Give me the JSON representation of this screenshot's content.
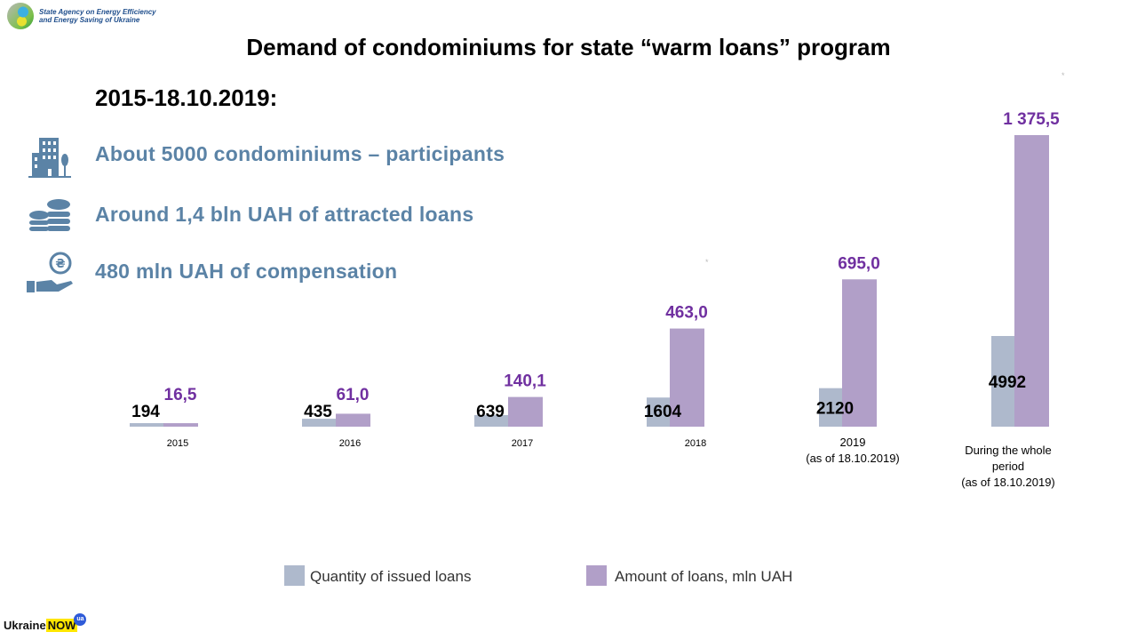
{
  "header": {
    "agency": [
      "State Agency on Energy Efficiency",
      "and Energy Saving of Ukraine"
    ],
    "footer_logo": {
      "word": "Ukraine",
      "highlight": "NOW",
      "badge": "ua"
    }
  },
  "facts": {
    "period": "2015-18.10.2019:",
    "items": [
      {
        "icon": "building-icon",
        "text": "About 5000 condominiums –  participants"
      },
      {
        "icon": "coins-icon",
        "text": "Around 1,4 bln UAH of attracted loans"
      },
      {
        "icon": "hand-hryvnia-icon",
        "text": "480 mln UAH of compensation"
      }
    ]
  },
  "colors": {
    "quantity": "#aeb9cc",
    "amount": "#b19fc8",
    "amount_label": "#7030a0",
    "facts": "#5b83a6"
  },
  "chart_data": {
    "type": "bar",
    "title": "Demand of condominiums for state “warm loans” program",
    "categories": [
      [
        "2015"
      ],
      [
        "2016"
      ],
      [
        "2017"
      ],
      [
        "2018"
      ],
      [
        "2019",
        "(as of 18.10.2019)"
      ],
      [
        "During the whole",
        "period",
        "(as of 18.10.2019)"
      ]
    ],
    "series": [
      {
        "name": "Quantity of issued loans",
        "values": [
          194,
          435,
          639,
          1604,
          2120,
          4992
        ],
        "labels": [
          "194",
          "435",
          "639",
          "1604",
          "2120",
          "4992"
        ]
      },
      {
        "name": "Amount of loans, mln UAH",
        "values": [
          16.5,
          61.0,
          140.1,
          463.0,
          695.0,
          1375.5
        ],
        "labels": [
          "16,5",
          "61,0",
          "140,1",
          "463,0",
          "695,0",
          "1 375,5"
        ]
      }
    ],
    "legend": "bottom",
    "grid": false
  }
}
